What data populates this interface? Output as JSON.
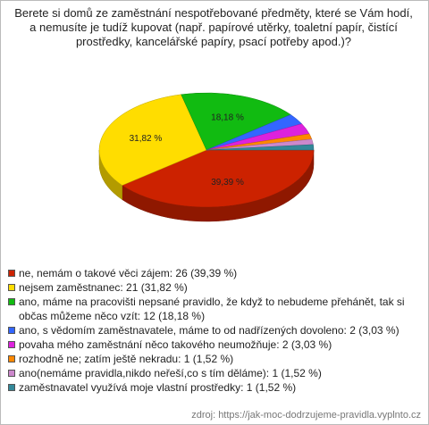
{
  "chart_data": {
    "type": "pie",
    "title": "Berete si domů ze zaměstnání nespotřebované předměty, které se Vám hodí, a nemusíte je tudíž kupovat (např. papírové utěrky, toaletní papír, čistící prostředky, kancelářské papíry, psací potřeby apod.)?",
    "categories": [
      "ne, nemám o takové věci zájem: 26 (39,39 %)",
      "nejsem zaměstnanec: 21 (31,82 %)",
      "ano, máme na pracovišti nepsané pravidlo, že když to nebudeme přehánět, tak si občas můžeme něco vzít: 12 (18,18 %)",
      "ano, s vědomím zaměstnavatele, máme to od nadřízených dovoleno: 2 (3,03 %)",
      "povaha mého zaměstnání něco takového neumožňuje: 2 (3,03 %)",
      "rozhodně ne; zatím ještě nekradu: 1 (1,52 %)",
      "ano(nemáme pravidla,nikdo neřeší,co s tím děláme): 1 (1,52 %)",
      "zaměstnavatel využívá moje vlastní prostředky: 1 (1,52 %)"
    ],
    "values": [
      39.39,
      31.82,
      18.18,
      3.03,
      3.03,
      1.52,
      1.52,
      1.52
    ],
    "value_labels": [
      "39,39 %",
      "31,82 %",
      "18,18 %",
      null,
      null,
      null,
      null,
      null
    ],
    "colors": [
      "#cc2200",
      "#ffdd00",
      "#11bb11",
      "#3366ff",
      "#dd22dd",
      "#ff8800",
      "#cc88cc",
      "#338899"
    ],
    "source": "zdroj: https://jak-moc-dodrzujeme-pravidla.vyplnto.cz"
  }
}
